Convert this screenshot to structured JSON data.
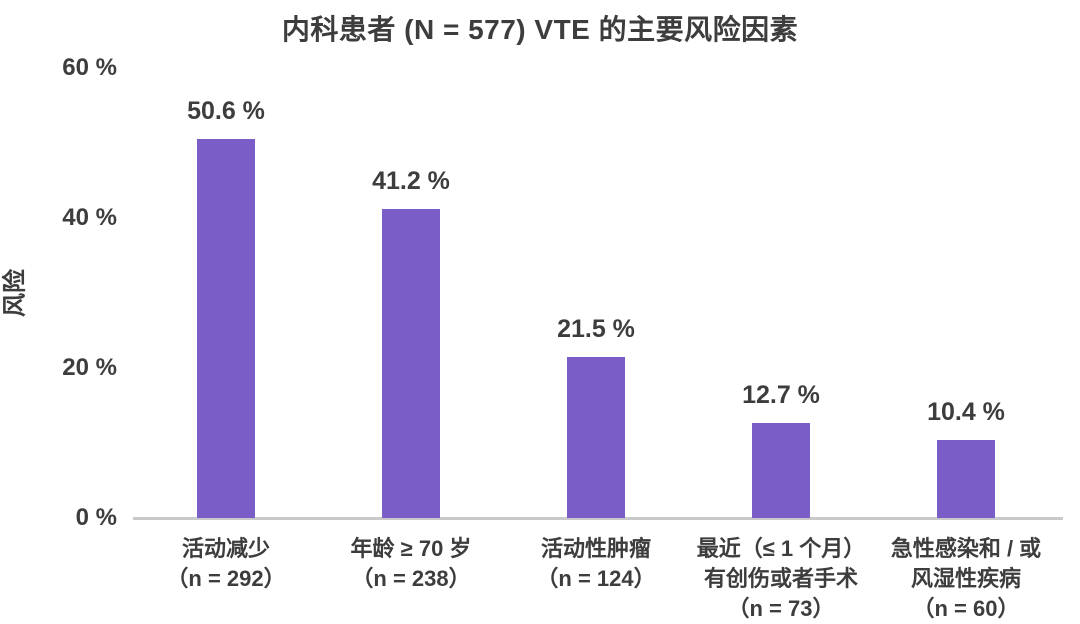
{
  "chart_data": {
    "type": "bar",
    "title": "内科患者 (N = 577) VTE 的主要风险因素",
    "xlabel": "",
    "ylabel": "风险",
    "ylim": [
      0,
      60
    ],
    "grid": false,
    "legend": null,
    "bar_color": "#7b5dc8",
    "yticks": [
      {
        "value": 60,
        "label": "60 %"
      },
      {
        "value": 40,
        "label": "40 %"
      },
      {
        "value": 20,
        "label": "20 %"
      },
      {
        "value": 0,
        "label": "0 %"
      }
    ],
    "bars": [
      {
        "value": 50.6,
        "value_label": "50.6 %",
        "n": 292,
        "category_lines": [
          "活动减少",
          "（n = 292）"
        ]
      },
      {
        "value": 41.2,
        "value_label": "41.2 %",
        "n": 238,
        "category_lines": [
          "年龄 ≥ 70 岁",
          "（n = 238）"
        ]
      },
      {
        "value": 21.5,
        "value_label": "21.5 %",
        "n": 124,
        "category_lines": [
          "活动性肿瘤",
          "（n = 124）"
        ]
      },
      {
        "value": 12.7,
        "value_label": "12.7 %",
        "n": 73,
        "category_lines": [
          "最近（≤ 1 个月）",
          "有创伤或者手术",
          "（n = 73）"
        ]
      },
      {
        "value": 10.4,
        "value_label": "10.4 %",
        "n": 60,
        "category_lines": [
          "急性感染和 / 或",
          "风湿性疾病",
          "（n = 60）"
        ]
      }
    ]
  },
  "colors": {
    "bar": "#7b5dc8",
    "text": "#3d3d3d",
    "axis_line": "#c9c9c9",
    "background": "#ffffff"
  },
  "layout_labels": {
    "note": ""
  }
}
